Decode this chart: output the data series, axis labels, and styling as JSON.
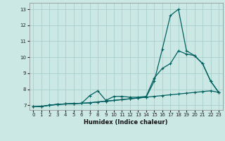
{
  "xlabel": "Humidex (Indice chaleur)",
  "bg_color": "#cce8e4",
  "line_color": "#006060",
  "grid_color": "#aacfcc",
  "xlim": [
    -0.5,
    23.5
  ],
  "ylim": [
    6.7,
    13.4
  ],
  "xticks": [
    0,
    1,
    2,
    3,
    4,
    5,
    6,
    7,
    8,
    9,
    10,
    11,
    12,
    13,
    14,
    15,
    16,
    17,
    18,
    19,
    20,
    21,
    22,
    23
  ],
  "yticks": [
    7,
    8,
    9,
    10,
    11,
    12,
    13
  ],
  "line1_x": [
    0,
    1,
    2,
    3,
    4,
    5,
    6,
    7,
    8,
    9,
    10,
    11,
    12,
    13,
    14,
    15,
    16,
    17,
    18,
    19,
    20,
    21,
    22,
    23
  ],
  "line1_y": [
    6.9,
    6.92,
    7.0,
    7.05,
    7.08,
    7.1,
    7.12,
    7.15,
    7.2,
    7.25,
    7.3,
    7.35,
    7.4,
    7.45,
    7.5,
    7.55,
    7.6,
    7.65,
    7.7,
    7.75,
    7.8,
    7.85,
    7.9,
    7.8
  ],
  "line2_x": [
    0,
    1,
    2,
    3,
    4,
    5,
    6,
    7,
    8,
    9,
    10,
    11,
    12,
    13,
    14,
    15,
    16,
    17,
    18,
    19,
    20,
    21,
    22,
    23
  ],
  "line2_y": [
    6.9,
    6.92,
    7.0,
    7.05,
    7.08,
    7.1,
    7.12,
    7.6,
    7.9,
    7.3,
    7.55,
    7.55,
    7.5,
    7.5,
    7.55,
    8.7,
    9.3,
    9.6,
    10.4,
    10.2,
    10.1,
    9.6,
    8.5,
    7.8
  ],
  "line3_x": [
    0,
    1,
    2,
    3,
    4,
    5,
    6,
    7,
    8,
    9,
    10,
    11,
    12,
    13,
    14,
    15,
    16,
    17,
    18,
    19,
    20,
    21,
    22,
    23
  ],
  "line3_y": [
    6.9,
    6.92,
    7.0,
    7.05,
    7.08,
    7.1,
    7.12,
    7.15,
    7.2,
    7.25,
    7.3,
    7.35,
    7.4,
    7.45,
    7.5,
    8.5,
    10.5,
    12.6,
    13.0,
    10.4,
    10.1,
    9.6,
    8.5,
    7.8
  ]
}
